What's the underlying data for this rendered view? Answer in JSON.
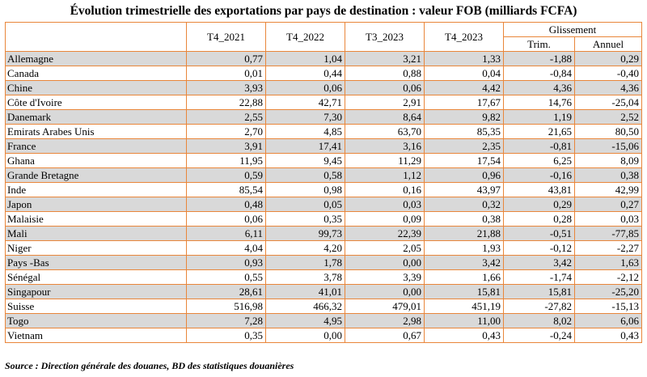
{
  "title": "Évolution trimestrielle des exportations par pays de destination : valeur FOB (milliards FCFA)",
  "columns": {
    "t4_2021": "T4_2021",
    "t4_2022": "T4_2022",
    "t3_2023": "T3_2023",
    "t4_2023": "T4_2023",
    "glissement": "Glissement",
    "trim": "Trim.",
    "annuel": "Annuel"
  },
  "rows": [
    {
      "country": "Allemagne",
      "v": [
        "0,77",
        "1,04",
        "3,21",
        "1,33",
        "-1,88",
        "0,29"
      ]
    },
    {
      "country": "Canada",
      "v": [
        "0,01",
        "0,44",
        "0,88",
        "0,04",
        "-0,84",
        "-0,40"
      ]
    },
    {
      "country": "Chine",
      "v": [
        "3,93",
        "0,06",
        "0,06",
        "4,42",
        "4,36",
        "4,36"
      ]
    },
    {
      "country": "Côte d'Ivoire",
      "v": [
        "22,88",
        "42,71",
        "2,91",
        "17,67",
        "14,76",
        "-25,04"
      ]
    },
    {
      "country": "Danemark",
      "v": [
        "2,55",
        "7,30",
        "8,64",
        "9,82",
        "1,19",
        "2,52"
      ]
    },
    {
      "country": "Emirats Arabes Unis",
      "v": [
        "2,70",
        "4,85",
        "63,70",
        "85,35",
        "21,65",
        "80,50"
      ]
    },
    {
      "country": "France",
      "v": [
        "3,91",
        "17,41",
        "3,16",
        "2,35",
        "-0,81",
        "-15,06"
      ]
    },
    {
      "country": "Ghana",
      "v": [
        "11,95",
        "9,45",
        "11,29",
        "17,54",
        "6,25",
        "8,09"
      ]
    },
    {
      "country": "Grande Bretagne",
      "v": [
        "0,59",
        "0,58",
        "1,12",
        "0,96",
        "-0,16",
        "0,38"
      ]
    },
    {
      "country": "Inde",
      "v": [
        "85,54",
        "0,98",
        "0,16",
        "43,97",
        "43,81",
        "42,99"
      ]
    },
    {
      "country": "Japon",
      "v": [
        "0,48",
        "0,05",
        "0,03",
        "0,32",
        "0,29",
        "0,27"
      ]
    },
    {
      "country": "Malaisie",
      "v": [
        "0,06",
        "0,35",
        "0,09",
        "0,38",
        "0,28",
        "0,03"
      ]
    },
    {
      "country": "Mali",
      "v": [
        "6,11",
        "99,73",
        "22,39",
        "21,88",
        "-0,51",
        "-77,85"
      ]
    },
    {
      "country": "Niger",
      "v": [
        "4,04",
        "4,20",
        "2,05",
        "1,93",
        "-0,12",
        "-2,27"
      ]
    },
    {
      "country": "Pays -Bas",
      "v": [
        "0,93",
        "1,78",
        "0,00",
        "3,42",
        "3,42",
        "1,63"
      ]
    },
    {
      "country": "Sénégal",
      "v": [
        "0,55",
        "3,78",
        "3,39",
        "1,66",
        "-1,74",
        "-2,12"
      ]
    },
    {
      "country": "Singapour",
      "v": [
        "28,61",
        "41,01",
        "0,00",
        "15,81",
        "15,81",
        "-25,20"
      ]
    },
    {
      "country": "Suisse",
      "v": [
        "516,98",
        "466,32",
        "479,01",
        "451,19",
        "-27,82",
        "-15,13"
      ]
    },
    {
      "country": "Togo",
      "v": [
        "7,28",
        "4,95",
        "2,98",
        "11,00",
        "8,02",
        "6,06"
      ]
    },
    {
      "country": "Vietnam",
      "v": [
        "0,35",
        "0,00",
        "0,67",
        "0,43",
        "-0,24",
        "0,43"
      ]
    }
  ],
  "source": "Source : Direction générale des douanes, BD des statistiques douanières"
}
